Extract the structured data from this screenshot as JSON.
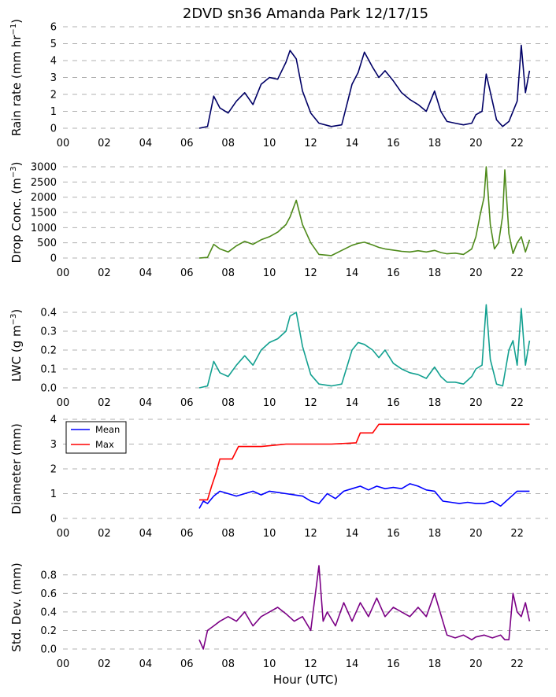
{
  "title": "2DVD sn36 Amanda Park 12/17/15",
  "xlabel": "Hour (UTC)",
  "chart_data": [
    {
      "type": "line",
      "ylabel": "Rain rate (mm hr",
      "ylabel_sup": "−1",
      "ylabel_end": ")",
      "xlim": [
        0,
        23.5
      ],
      "ylim": [
        0,
        6
      ],
      "x_ticks": [
        "00",
        "02",
        "04",
        "06",
        "08",
        "10",
        "12",
        "14",
        "16",
        "18",
        "20",
        "22"
      ],
      "y_ticks": [
        0,
        1,
        2,
        3,
        4,
        5,
        6
      ],
      "series": [
        {
          "color": "#000066",
          "x": [
            6.6,
            7.0,
            7.3,
            7.6,
            8.0,
            8.4,
            8.8,
            9.2,
            9.6,
            10.0,
            10.4,
            10.8,
            11.0,
            11.3,
            11.6,
            12.0,
            12.4,
            13.0,
            13.5,
            14.0,
            14.3,
            14.6,
            15.0,
            15.3,
            15.6,
            16.0,
            16.4,
            16.8,
            17.2,
            17.6,
            18.0,
            18.3,
            18.6,
            19.0,
            19.4,
            19.8,
            20.0,
            20.3,
            20.5,
            20.8,
            21.0,
            21.3,
            21.6,
            22.0,
            22.2,
            22.4,
            22.6
          ],
          "y": [
            0,
            0.1,
            1.9,
            1.2,
            0.9,
            1.6,
            2.1,
            1.4,
            2.6,
            3.0,
            2.9,
            3.9,
            4.6,
            4.1,
            2.2,
            0.9,
            0.3,
            0.1,
            0.2,
            2.6,
            3.3,
            4.5,
            3.6,
            3.0,
            3.4,
            2.8,
            2.1,
            1.7,
            1.4,
            1.0,
            2.2,
            1.0,
            0.4,
            0.3,
            0.2,
            0.3,
            0.8,
            1.0,
            3.2,
            1.6,
            0.5,
            0.1,
            0.4,
            1.6,
            4.9,
            2.1,
            3.4
          ]
        }
      ]
    },
    {
      "type": "line",
      "ylabel": "Drop Conc. (m",
      "ylabel_sup": "−3",
      "ylabel_end": ")",
      "xlim": [
        0,
        23.5
      ],
      "ylim": [
        0,
        3000
      ],
      "x_ticks": [
        "00",
        "02",
        "04",
        "06",
        "08",
        "10",
        "12",
        "14",
        "16",
        "18",
        "20",
        "22"
      ],
      "y_ticks": [
        0,
        500,
        1000,
        1500,
        2000,
        2500,
        3000
      ],
      "series": [
        {
          "color": "#4e8a1a",
          "x": [
            6.6,
            7.0,
            7.3,
            7.6,
            8.0,
            8.4,
            8.8,
            9.2,
            9.6,
            10.0,
            10.4,
            10.8,
            11.0,
            11.3,
            11.6,
            12.0,
            12.4,
            13.0,
            13.5,
            14.0,
            14.3,
            14.6,
            15.0,
            15.3,
            15.6,
            16.0,
            16.4,
            16.8,
            17.2,
            17.6,
            18.0,
            18.3,
            18.6,
            19.0,
            19.4,
            19.8,
            20.0,
            20.2,
            20.4,
            20.5,
            20.7,
            20.9,
            21.1,
            21.3,
            21.4,
            21.6,
            21.8,
            22.0,
            22.2,
            22.4,
            22.6
          ],
          "y": [
            0,
            20,
            450,
            300,
            200,
            400,
            550,
            450,
            600,
            700,
            850,
            1100,
            1350,
            1900,
            1100,
            500,
            120,
            80,
            250,
            420,
            480,
            520,
            430,
            350,
            300,
            260,
            220,
            200,
            240,
            200,
            250,
            180,
            140,
            160,
            120,
            300,
            700,
            1400,
            2000,
            3000,
            1100,
            300,
            500,
            1400,
            2900,
            800,
            150,
            500,
            700,
            200,
            600
          ]
        }
      ]
    },
    {
      "type": "line",
      "ylabel": "LWC (g m",
      "ylabel_sup": "−3",
      "ylabel_end": ")",
      "xlim": [
        0,
        23.5
      ],
      "ylim": [
        0,
        0.45
      ],
      "x_ticks": [
        "00",
        "02",
        "04",
        "06",
        "08",
        "10",
        "12",
        "14",
        "16",
        "18",
        "20",
        "22"
      ],
      "y_ticks": [
        "0.0",
        "0.1",
        "0.2",
        "0.3",
        "0.4"
      ],
      "series": [
        {
          "color": "#12a090",
          "x": [
            6.6,
            7.0,
            7.3,
            7.6,
            8.0,
            8.4,
            8.8,
            9.2,
            9.6,
            10.0,
            10.4,
            10.8,
            11.0,
            11.3,
            11.6,
            12.0,
            12.4,
            13.0,
            13.5,
            14.0,
            14.3,
            14.6,
            15.0,
            15.3,
            15.6,
            16.0,
            16.4,
            16.8,
            17.2,
            17.6,
            18.0,
            18.3,
            18.6,
            19.0,
            19.4,
            19.8,
            20.0,
            20.3,
            20.5,
            20.7,
            21.0,
            21.3,
            21.6,
            21.8,
            22.0,
            22.2,
            22.4,
            22.6
          ],
          "y": [
            0,
            0.01,
            0.14,
            0.08,
            0.06,
            0.12,
            0.17,
            0.12,
            0.2,
            0.24,
            0.26,
            0.3,
            0.38,
            0.4,
            0.22,
            0.07,
            0.02,
            0.01,
            0.02,
            0.2,
            0.24,
            0.23,
            0.2,
            0.16,
            0.2,
            0.13,
            0.1,
            0.08,
            0.07,
            0.05,
            0.11,
            0.06,
            0.03,
            0.03,
            0.02,
            0.06,
            0.1,
            0.12,
            0.44,
            0.15,
            0.02,
            0.01,
            0.2,
            0.25,
            0.12,
            0.42,
            0.12,
            0.25
          ]
        }
      ]
    },
    {
      "type": "line",
      "ylabel": "Diameter (mm)",
      "xlim": [
        0,
        23.5
      ],
      "ylim": [
        0,
        4
      ],
      "x_ticks": [
        "00",
        "02",
        "04",
        "06",
        "08",
        "10",
        "12",
        "14",
        "16",
        "18",
        "20",
        "22"
      ],
      "y_ticks": [
        0,
        1,
        2,
        3,
        4
      ],
      "legend": [
        "Mean",
        "Max"
      ],
      "legend_position": "top-left",
      "series": [
        {
          "name": "Mean",
          "color": "#0000ff",
          "x": [
            6.6,
            6.8,
            7.0,
            7.3,
            7.6,
            8.0,
            8.4,
            8.8,
            9.2,
            9.6,
            10.0,
            10.4,
            10.8,
            11.2,
            11.6,
            12.0,
            12.4,
            12.8,
            13.2,
            13.6,
            14.0,
            14.4,
            14.8,
            15.2,
            15.6,
            16.0,
            16.4,
            16.8,
            17.2,
            17.6,
            18.0,
            18.4,
            18.8,
            19.2,
            19.6,
            20.0,
            20.4,
            20.8,
            21.2,
            21.6,
            22.0,
            22.4,
            22.6
          ],
          "y": [
            0.4,
            0.7,
            0.6,
            0.9,
            1.1,
            1.0,
            0.9,
            1.0,
            1.1,
            0.95,
            1.1,
            1.05,
            1.0,
            0.95,
            0.9,
            0.7,
            0.6,
            1.0,
            0.8,
            1.1,
            1.2,
            1.3,
            1.15,
            1.3,
            1.2,
            1.25,
            1.2,
            1.4,
            1.3,
            1.15,
            1.1,
            0.7,
            0.65,
            0.6,
            0.65,
            0.6,
            0.6,
            0.7,
            0.5,
            0.8,
            1.1,
            1.1,
            1.1
          ]
        },
        {
          "name": "Max",
          "color": "#ff0000",
          "x": [
            6.6,
            7.0,
            7.2,
            7.4,
            7.6,
            8.2,
            8.5,
            9.6,
            10.2,
            10.8,
            12.0,
            13.0,
            14.2,
            14.4,
            15.0,
            15.3,
            16.0,
            22.6
          ],
          "y": [
            0.75,
            0.75,
            1.3,
            1.8,
            2.4,
            2.4,
            2.9,
            2.9,
            2.95,
            3.0,
            3.0,
            3.0,
            3.05,
            3.45,
            3.45,
            3.8,
            3.8,
            3.8
          ]
        }
      ]
    },
    {
      "type": "line",
      "ylabel": "Std. Dev. (mm)",
      "xlim": [
        0,
        23.5
      ],
      "ylim": [
        0,
        0.9
      ],
      "x_ticks": [
        "00",
        "02",
        "04",
        "06",
        "08",
        "10",
        "12",
        "14",
        "16",
        "18",
        "20",
        "22"
      ],
      "y_ticks": [
        "0.0",
        "0.2",
        "0.4",
        "0.6",
        "0.8"
      ],
      "series": [
        {
          "color": "#7b0085",
          "x": [
            6.6,
            6.8,
            7.0,
            7.3,
            7.6,
            8.0,
            8.4,
            8.8,
            9.2,
            9.6,
            10.0,
            10.4,
            10.8,
            11.2,
            11.6,
            12.0,
            12.4,
            12.6,
            12.8,
            13.2,
            13.6,
            14.0,
            14.4,
            14.8,
            15.2,
            15.6,
            16.0,
            16.4,
            16.8,
            17.2,
            17.6,
            18.0,
            18.4,
            18.6,
            19.0,
            19.4,
            19.8,
            20.0,
            20.4,
            20.8,
            21.2,
            21.4,
            21.6,
            21.8,
            22.0,
            22.2,
            22.4,
            22.6
          ],
          "y": [
            0.1,
            0.0,
            0.2,
            0.25,
            0.3,
            0.35,
            0.3,
            0.4,
            0.25,
            0.35,
            0.4,
            0.45,
            0.38,
            0.3,
            0.35,
            0.2,
            0.9,
            0.3,
            0.4,
            0.25,
            0.5,
            0.3,
            0.5,
            0.35,
            0.55,
            0.35,
            0.45,
            0.4,
            0.35,
            0.45,
            0.35,
            0.6,
            0.3,
            0.15,
            0.12,
            0.15,
            0.1,
            0.13,
            0.15,
            0.12,
            0.15,
            0.1,
            0.1,
            0.6,
            0.4,
            0.35,
            0.5,
            0.3
          ]
        }
      ]
    }
  ]
}
